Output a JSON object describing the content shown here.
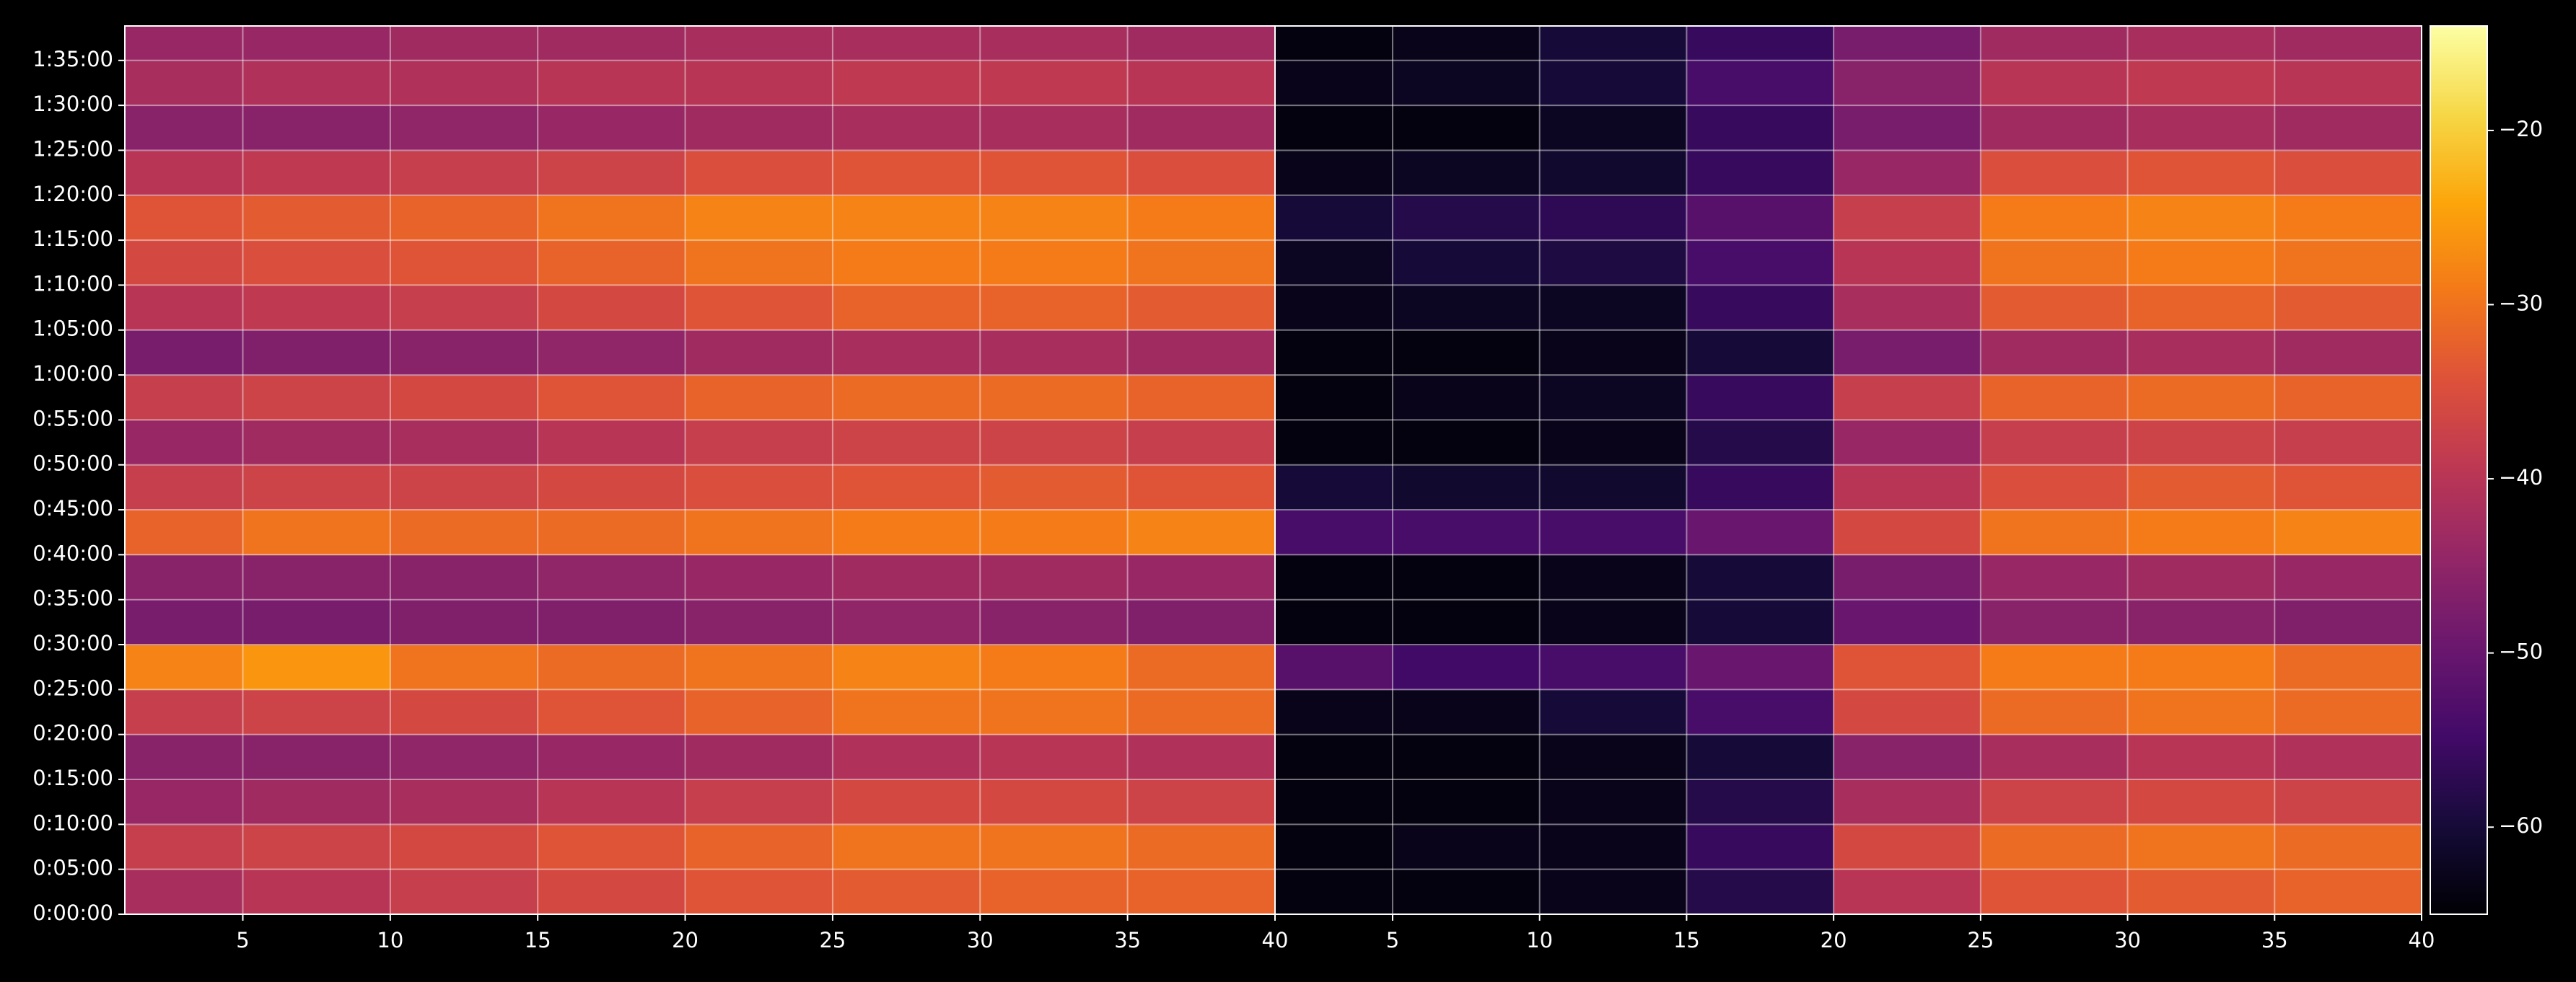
{
  "chart_data": {
    "type": "heatmap",
    "colormap": "inferno",
    "grid": true,
    "ylim": [
      0,
      5930
    ],
    "yticks": [
      {
        "value": 0,
        "label": "0:00:00"
      },
      {
        "value": 300,
        "label": "0:05:00"
      },
      {
        "value": 600,
        "label": "0:10:00"
      },
      {
        "value": 900,
        "label": "0:15:00"
      },
      {
        "value": 1200,
        "label": "0:20:00"
      },
      {
        "value": 1500,
        "label": "0:25:00"
      },
      {
        "value": 1800,
        "label": "0:30:00"
      },
      {
        "value": 2100,
        "label": "0:35:00"
      },
      {
        "value": 2400,
        "label": "0:40:00"
      },
      {
        "value": 2700,
        "label": "0:45:00"
      },
      {
        "value": 3000,
        "label": "0:50:00"
      },
      {
        "value": 3300,
        "label": "0:55:00"
      },
      {
        "value": 3600,
        "label": "1:00:00"
      },
      {
        "value": 3900,
        "label": "1:05:00"
      },
      {
        "value": 4200,
        "label": "1:10:00"
      },
      {
        "value": 4500,
        "label": "1:15:00"
      },
      {
        "value": 4800,
        "label": "1:20:00"
      },
      {
        "value": 5100,
        "label": "1:25:00"
      },
      {
        "value": 5400,
        "label": "1:30:00"
      },
      {
        "value": 5700,
        "label": "1:35:00"
      }
    ],
    "y_bins": [
      0,
      300,
      600,
      900,
      1200,
      1500,
      1800,
      2100,
      2400,
      2700,
      3000,
      3300,
      3600,
      3900,
      4200,
      4500,
      4800,
      5100,
      5400,
      5700,
      5930
    ],
    "zlim": [
      -65,
      -14
    ],
    "zticks": [
      {
        "value": -60,
        "label": "−60"
      },
      {
        "value": -50,
        "label": "−50"
      },
      {
        "value": -40,
        "label": "−40"
      },
      {
        "value": -30,
        "label": "−30"
      },
      {
        "value": -20,
        "label": "−20"
      }
    ],
    "panels": [
      {
        "xlim": [
          1,
          40
        ],
        "xticks": [
          5,
          10,
          15,
          20,
          25,
          30,
          35,
          40
        ],
        "x_bins": [
          1,
          5,
          10,
          15,
          20,
          25,
          30,
          35,
          40
        ],
        "z": [
          [
            -42,
            -40,
            -38,
            -36,
            -34,
            -33,
            -32,
            -32
          ],
          [
            -38,
            -37,
            -36,
            -34,
            -32,
            -30,
            -30,
            -31
          ],
          [
            -44,
            -43,
            -42,
            -40,
            -38,
            -36,
            -36,
            -37
          ],
          [
            -46,
            -46,
            -45,
            -44,
            -43,
            -41,
            -40,
            -41
          ],
          [
            -38,
            -37,
            -36,
            -34,
            -32,
            -30,
            -30,
            -31
          ],
          [
            -28,
            -26,
            -30,
            -31,
            -30,
            -28,
            -29,
            -31
          ],
          [
            -48,
            -48,
            -47,
            -47,
            -46,
            -45,
            -46,
            -47
          ],
          [
            -46,
            -46,
            -46,
            -45,
            -44,
            -43,
            -43,
            -44
          ],
          [
            -32,
            -30,
            -31,
            -31,
            -30,
            -29,
            -29,
            -28
          ],
          [
            -38,
            -37,
            -37,
            -36,
            -35,
            -34,
            -33,
            -34
          ],
          [
            -44,
            -43,
            -42,
            -40,
            -38,
            -37,
            -37,
            -38
          ],
          [
            -38,
            -37,
            -36,
            -34,
            -32,
            -31,
            -31,
            -32
          ],
          [
            -48,
            -47,
            -46,
            -45,
            -43,
            -42,
            -42,
            -43
          ],
          [
            -40,
            -39,
            -38,
            -36,
            -34,
            -32,
            -32,
            -33
          ],
          [
            -36,
            -35,
            -34,
            -32,
            -30,
            -29,
            -29,
            -30
          ],
          [
            -34,
            -33,
            -32,
            -30,
            -28,
            -28,
            -28,
            -29
          ],
          [
            -40,
            -39,
            -38,
            -37,
            -35,
            -34,
            -34,
            -35
          ],
          [
            -46,
            -46,
            -45,
            -44,
            -43,
            -42,
            -42,
            -43
          ],
          [
            -42,
            -41,
            -41,
            -40,
            -40,
            -39,
            -39,
            -40
          ],
          [
            -44,
            -44,
            -43,
            -43,
            -42,
            -42,
            -42,
            -43
          ]
        ]
      },
      {
        "xlim": [
          1,
          40
        ],
        "xticks": [
          5,
          10,
          15,
          20,
          25,
          30,
          35,
          40
        ],
        "x_bins": [
          1,
          5,
          10,
          15,
          20,
          25,
          30,
          35,
          40
        ],
        "z": [
          [
            -64,
            -64,
            -63,
            -58,
            -40,
            -34,
            -33,
            -32
          ],
          [
            -64,
            -63,
            -63,
            -56,
            -36,
            -31,
            -30,
            -31
          ],
          [
            -64,
            -64,
            -63,
            -58,
            -42,
            -37,
            -36,
            -37
          ],
          [
            -64,
            -64,
            -63,
            -60,
            -46,
            -42,
            -40,
            -41
          ],
          [
            -63,
            -63,
            -60,
            -54,
            -36,
            -31,
            -30,
            -31
          ],
          [
            -52,
            -55,
            -54,
            -50,
            -34,
            -29,
            -29,
            -31
          ],
          [
            -64,
            -64,
            -63,
            -60,
            -50,
            -46,
            -46,
            -47
          ],
          [
            -64,
            -64,
            -63,
            -60,
            -48,
            -44,
            -43,
            -44
          ],
          [
            -54,
            -54,
            -54,
            -50,
            -36,
            -30,
            -29,
            -28
          ],
          [
            -60,
            -61,
            -61,
            -56,
            -40,
            -35,
            -33,
            -34
          ],
          [
            -64,
            -64,
            -63,
            -58,
            -44,
            -38,
            -37,
            -38
          ],
          [
            -64,
            -63,
            -62,
            -56,
            -38,
            -32,
            -31,
            -32
          ],
          [
            -64,
            -64,
            -63,
            -60,
            -48,
            -43,
            -42,
            -43
          ],
          [
            -63,
            -62,
            -62,
            -56,
            -42,
            -33,
            -32,
            -33
          ],
          [
            -62,
            -60,
            -59,
            -54,
            -40,
            -30,
            -29,
            -30
          ],
          [
            -60,
            -58,
            -57,
            -52,
            -38,
            -29,
            -28,
            -29
          ],
          [
            -63,
            -62,
            -61,
            -56,
            -44,
            -35,
            -34,
            -35
          ],
          [
            -64,
            -64,
            -62,
            -56,
            -48,
            -43,
            -42,
            -43
          ],
          [
            -63,
            -62,
            -60,
            -54,
            -46,
            -40,
            -39,
            -40
          ],
          [
            -64,
            -63,
            -60,
            -56,
            -48,
            -43,
            -42,
            -43
          ]
        ]
      }
    ]
  }
}
